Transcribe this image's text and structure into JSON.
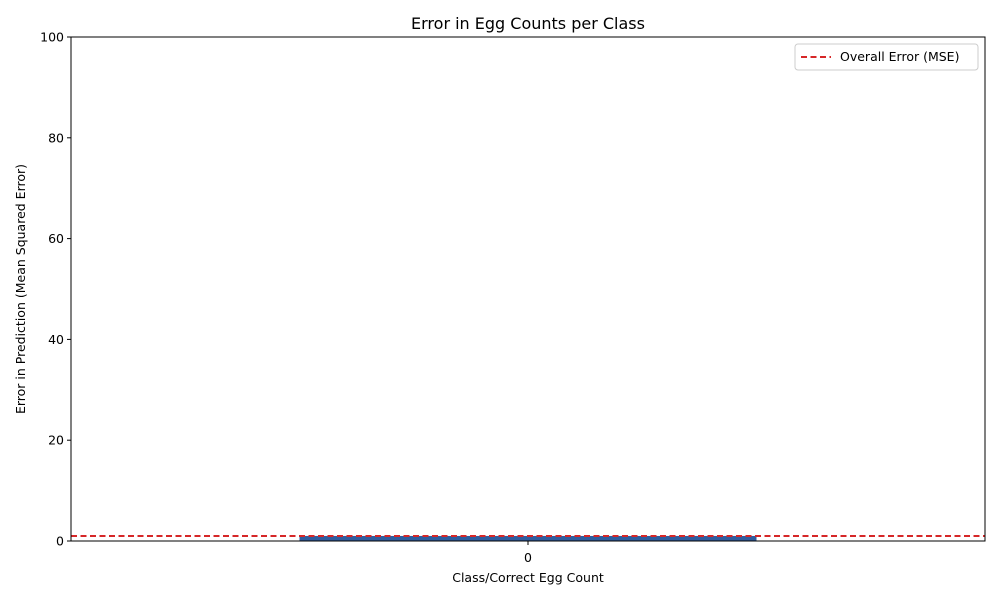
{
  "chart_data": {
    "type": "bar",
    "title": "Error in Egg Counts per Class",
    "xlabel": "Class/Correct Egg Count",
    "ylabel": "Error in Prediction (Mean Squared Error)",
    "categories": [
      "0"
    ],
    "values": [
      1
    ],
    "ylim": [
      0,
      100
    ],
    "yticks": [
      "0",
      "20",
      "40",
      "60",
      "80",
      "100"
    ],
    "bar_color": "#2f5d9e",
    "reference_line": {
      "label": "Overall Error (MSE)",
      "value": 1,
      "color": "#d62728",
      "style": "dashed"
    },
    "legend_position": "top-right",
    "grid": false
  }
}
